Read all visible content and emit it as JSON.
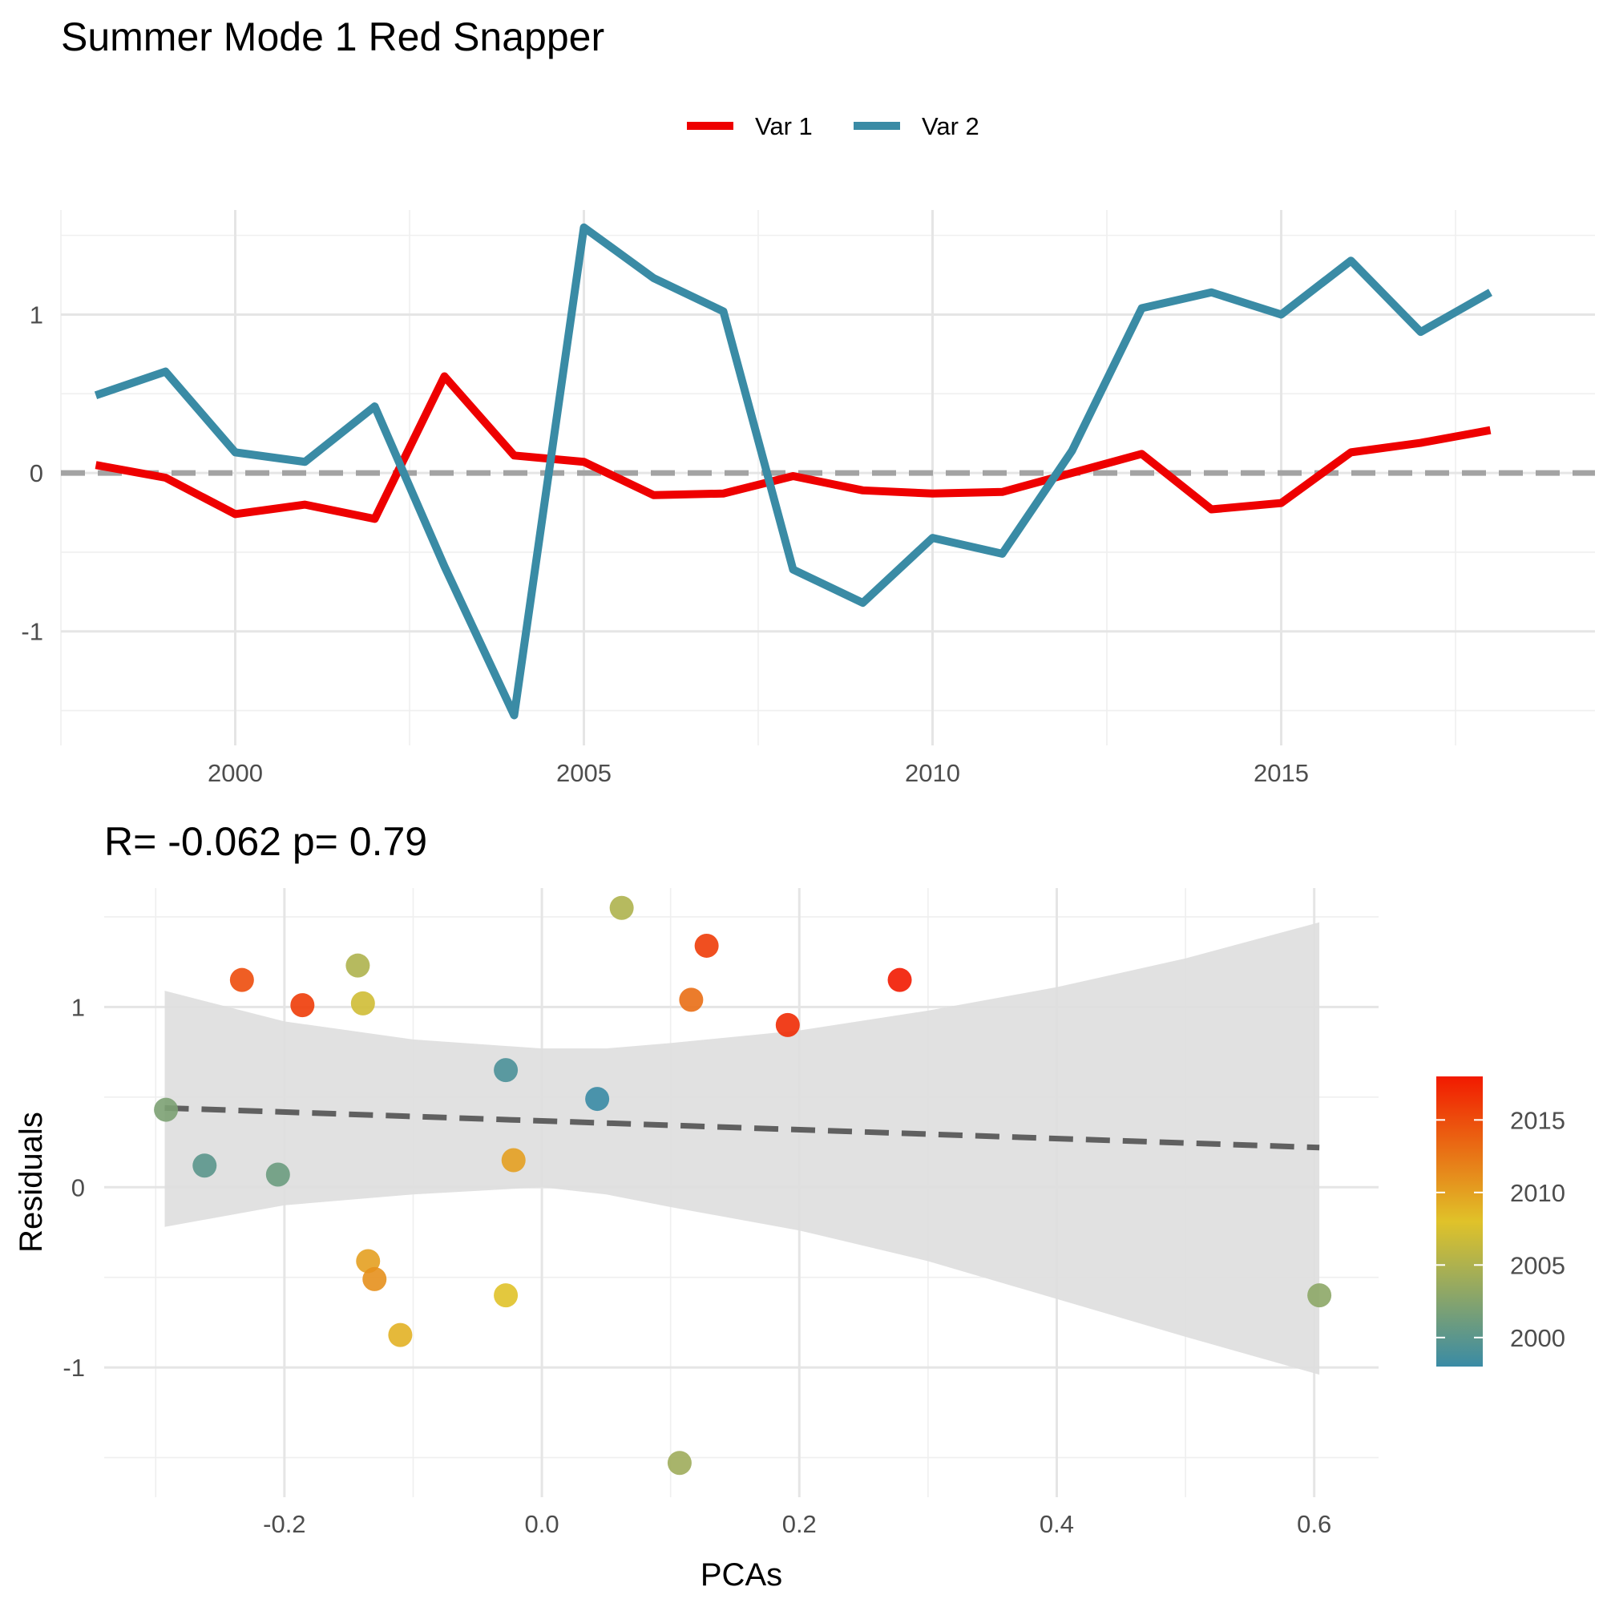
{
  "title": "Summer Mode 1 Red Snapper",
  "colors": {
    "var1": "#EE0000",
    "var2": "#3A8BA5",
    "zero_line": "#A3A3A3",
    "ribbon": "#DEDEDE",
    "fit_line": "#606060",
    "gradient_low": "#3A8BA5",
    "gradient_mid": "#E0C229",
    "gradient_high": "#F21A00"
  },
  "chart_data": [
    {
      "type": "line",
      "title": "",
      "xlabel": "",
      "ylabel": "",
      "xlim": [
        1997.5,
        2019.5
      ],
      "ylim": [
        -1.72,
        1.66
      ],
      "x_ticks": [
        2000,
        2005,
        2010,
        2015
      ],
      "x_tick_labels": [
        "2000",
        "2005",
        "2010",
        "2015"
      ],
      "y_ticks": [
        -1,
        0,
        1
      ],
      "y_tick_labels": [
        "-1",
        "0",
        "1"
      ],
      "grid": true,
      "legend_position": "top",
      "reference_line": {
        "y": 0,
        "style": "dashed"
      },
      "x": [
        1998,
        1999,
        2000,
        2001,
        2002,
        2003,
        2004,
        2005,
        2006,
        2007,
        2008,
        2009,
        2010,
        2011,
        2012,
        2013,
        2014,
        2015,
        2016,
        2017,
        2018
      ],
      "series": [
        {
          "name": "Var 1",
          "values": [
            0.05,
            -0.03,
            -0.26,
            -0.2,
            -0.29,
            0.61,
            0.11,
            0.07,
            -0.14,
            -0.13,
            -0.02,
            -0.11,
            -0.13,
            -0.12,
            0.0,
            0.12,
            -0.23,
            -0.19,
            0.13,
            0.19,
            0.27
          ]
        },
        {
          "name": "Var 2",
          "values": [
            0.49,
            0.64,
            0.13,
            0.07,
            0.42,
            -0.59,
            -1.53,
            1.55,
            1.23,
            1.02,
            -0.61,
            -0.82,
            -0.41,
            -0.51,
            0.14,
            1.04,
            1.14,
            1.0,
            1.34,
            0.89,
            1.14
          ]
        }
      ]
    },
    {
      "type": "scatter",
      "title": "R= -0.062  p= 0.79",
      "xlabel": "PCAs",
      "ylabel": "Residuals",
      "xlim": [
        -0.34,
        0.65
      ],
      "ylim": [
        -1.72,
        1.66
      ],
      "x_ticks": [
        -0.2,
        0.0,
        0.2,
        0.4,
        0.6
      ],
      "x_tick_labels": [
        "-0.2",
        "0.0",
        "0.2",
        "0.4",
        "0.6"
      ],
      "y_ticks": [
        -1,
        0,
        1
      ],
      "y_tick_labels": [
        "-1",
        "0",
        "1"
      ],
      "grid": true,
      "legend_position": "right",
      "color_scale": {
        "min": 1998,
        "max": 2018,
        "ticks": [
          2000,
          2005,
          2010,
          2015
        ],
        "tick_labels": [
          "2000",
          "2005",
          "2010",
          "2015"
        ]
      },
      "fit": {
        "x": [
          -0.293,
          0.604
        ],
        "y": [
          0.44,
          0.22
        ],
        "ribbon": {
          "x": [
            -0.293,
            -0.2,
            -0.1,
            0.0,
            0.05,
            0.1,
            0.2,
            0.3,
            0.4,
            0.5,
            0.604
          ],
          "upper": [
            1.09,
            0.92,
            0.82,
            0.77,
            0.77,
            0.8,
            0.87,
            0.98,
            1.11,
            1.27,
            1.47
          ],
          "lower": [
            -0.22,
            -0.1,
            -0.04,
            0.0,
            -0.04,
            -0.11,
            -0.24,
            -0.41,
            -0.62,
            -0.83,
            -1.04
          ]
        }
      },
      "points": [
        {
          "x": -0.292,
          "y": 0.43,
          "year": 2002
        },
        {
          "x": -0.262,
          "y": 0.12,
          "year": 2000
        },
        {
          "x": -0.233,
          "y": 1.15,
          "year": 2015
        },
        {
          "x": -0.205,
          "y": 0.07,
          "year": 2001
        },
        {
          "x": -0.186,
          "y": 1.01,
          "year": 2016
        },
        {
          "x": -0.143,
          "y": 1.23,
          "year": 2005
        },
        {
          "x": -0.139,
          "y": 1.02,
          "year": 2007
        },
        {
          "x": -0.135,
          "y": -0.41,
          "year": 2010
        },
        {
          "x": -0.13,
          "y": -0.51,
          "year": 2011
        },
        {
          "x": -0.11,
          "y": -0.82,
          "year": 2009
        },
        {
          "x": -0.028,
          "y": 0.65,
          "year": 1999
        },
        {
          "x": -0.028,
          "y": -0.6,
          "year": 2008
        },
        {
          "x": -0.022,
          "y": 0.15,
          "year": 2010
        },
        {
          "x": 0.043,
          "y": 0.49,
          "year": 1998
        },
        {
          "x": 0.062,
          "y": 1.55,
          "year": 2005
        },
        {
          "x": 0.107,
          "y": -1.53,
          "year": 2004
        },
        {
          "x": 0.116,
          "y": 1.04,
          "year": 2013
        },
        {
          "x": 0.128,
          "y": 1.34,
          "year": 2016
        },
        {
          "x": 0.191,
          "y": 0.9,
          "year": 2017
        },
        {
          "x": 0.278,
          "y": 1.15,
          "year": 2018
        },
        {
          "x": 0.604,
          "y": -0.6,
          "year": 2003
        }
      ]
    }
  ]
}
